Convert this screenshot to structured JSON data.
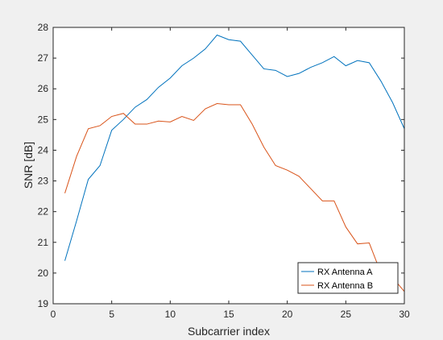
{
  "chart_data": {
    "type": "line",
    "xlabel": "Subcarrier index",
    "ylabel": "SNR [dB]",
    "xlim": [
      0,
      30
    ],
    "ylim": [
      19,
      28
    ],
    "xticks": [
      0,
      5,
      10,
      15,
      20,
      25,
      30
    ],
    "yticks": [
      19,
      20,
      21,
      22,
      23,
      24,
      25,
      26,
      27,
      28
    ],
    "grid": false,
    "legend_position": "bottom-right",
    "x": [
      1,
      2,
      3,
      4,
      5,
      6,
      7,
      8,
      9,
      10,
      11,
      12,
      13,
      14,
      15,
      16,
      17,
      18,
      19,
      20,
      21,
      22,
      23,
      24,
      25,
      26,
      27,
      28,
      29,
      30
    ],
    "series": [
      {
        "name": "RX Antenna A",
        "color": "#0072BD",
        "values": [
          20.4,
          21.7,
          23.05,
          23.5,
          24.65,
          25.0,
          25.4,
          25.65,
          26.05,
          26.35,
          26.75,
          27.0,
          27.3,
          27.75,
          27.6,
          27.55,
          27.1,
          26.65,
          26.6,
          26.4,
          26.5,
          26.7,
          26.85,
          27.05,
          26.75,
          26.92,
          26.85,
          26.25,
          25.55,
          24.7
        ]
      },
      {
        "name": "RX Antenna B",
        "color": "#D95319",
        "values": [
          22.6,
          23.8,
          24.7,
          24.8,
          25.1,
          25.2,
          24.85,
          24.85,
          24.95,
          24.92,
          25.1,
          24.97,
          25.35,
          25.52,
          25.48,
          25.48,
          24.85,
          24.1,
          23.5,
          23.35,
          23.15,
          22.75,
          22.35,
          22.35,
          21.5,
          20.95,
          20.98,
          20.0,
          19.85,
          19.4
        ]
      }
    ]
  }
}
